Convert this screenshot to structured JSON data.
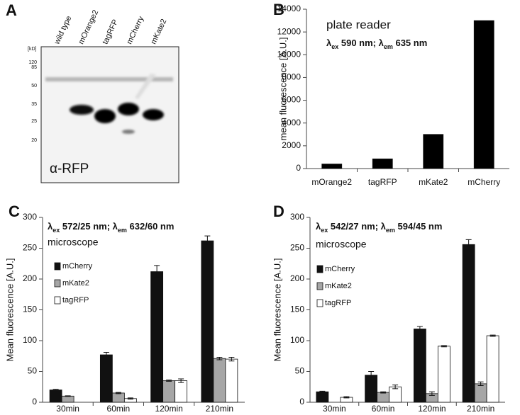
{
  "blot": {
    "letter": "A",
    "unit": "[kD]",
    "markers": [
      "120",
      "85",
      "50",
      "35",
      "25",
      "20"
    ],
    "lanes": [
      "wild type",
      "mOrange2",
      "tagRFP",
      "mCherry",
      "mKate2"
    ],
    "antibody": "α-RFP"
  },
  "chart_data": [
    {
      "type": "bar",
      "letter": "B",
      "title": "plate reader",
      "subtitle": [
        {
          "text": "λ"
        },
        {
          "sub": "ex"
        },
        {
          "text": " 590 nm; λ"
        },
        {
          "sub": "em"
        },
        {
          "text": " 635 nm"
        }
      ],
      "ylabel": "mean fluorescence [A.U.]",
      "categories": [
        "mOrange2",
        "tagRFP",
        "mKate2",
        "mCherry"
      ],
      "series": [
        {
          "color": "#000000",
          "values": [
            400,
            850,
            3000,
            13000
          ]
        }
      ],
      "ylim": [
        0,
        14000
      ],
      "yticks": [
        0,
        2000,
        4000,
        6000,
        8000,
        10000,
        12000,
        14000
      ]
    },
    {
      "type": "bar",
      "letter": "C",
      "subtitle": [
        {
          "text": "λ"
        },
        {
          "sub": "ex"
        },
        {
          "text": " 572/25 nm; λ"
        },
        {
          "sub": "em"
        },
        {
          "text": " 632/60 nm"
        }
      ],
      "title": "microscope",
      "ylabel": "Mean fluorescence [A.U.]",
      "categories": [
        "30min",
        "60min",
        "120min",
        "210min"
      ],
      "series": [
        {
          "name": "mCherry",
          "color": "#111111",
          "values": [
            20,
            77,
            212,
            262
          ],
          "errors": [
            1,
            4,
            10,
            8
          ]
        },
        {
          "name": "mKate2",
          "color": "#a6a6a6",
          "values": [
            10,
            15,
            35,
            71
          ],
          "errors": [
            0.5,
            1,
            1,
            2
          ]
        },
        {
          "name": "tagRFP",
          "color": "#ffffff",
          "values": [
            null,
            6,
            35,
            70
          ],
          "errors": [
            null,
            1,
            3,
            3
          ]
        }
      ],
      "ylim": [
        0,
        300
      ],
      "yticks": [
        0,
        50,
        100,
        150,
        200,
        250,
        300
      ]
    },
    {
      "type": "bar",
      "letter": "D",
      "subtitle": [
        {
          "text": "λ"
        },
        {
          "sub": "ex"
        },
        {
          "text": " 542/27 nm; λ"
        },
        {
          "sub": "em"
        },
        {
          "text": " 594/45 nm"
        }
      ],
      "title": "microscope",
      "ylabel": "Mean fluorescence [A.U.]",
      "categories": [
        "30min",
        "60min",
        "120min",
        "210min"
      ],
      "series": [
        {
          "name": "mCherry",
          "color": "#111111",
          "values": [
            17,
            44,
            119,
            256
          ],
          "errors": [
            1,
            6,
            4,
            8
          ]
        },
        {
          "name": "mKate2",
          "color": "#a6a6a6",
          "values": [
            null,
            16,
            14,
            30
          ],
          "errors": [
            null,
            1,
            3,
            3
          ]
        },
        {
          "name": "tagRFP",
          "color": "#ffffff",
          "values": [
            8,
            25,
            91,
            108
          ],
          "errors": [
            1,
            3,
            1,
            1
          ]
        }
      ],
      "ylim": [
        0,
        300
      ],
      "yticks": [
        0,
        50,
        100,
        150,
        200,
        250,
        300
      ]
    }
  ]
}
